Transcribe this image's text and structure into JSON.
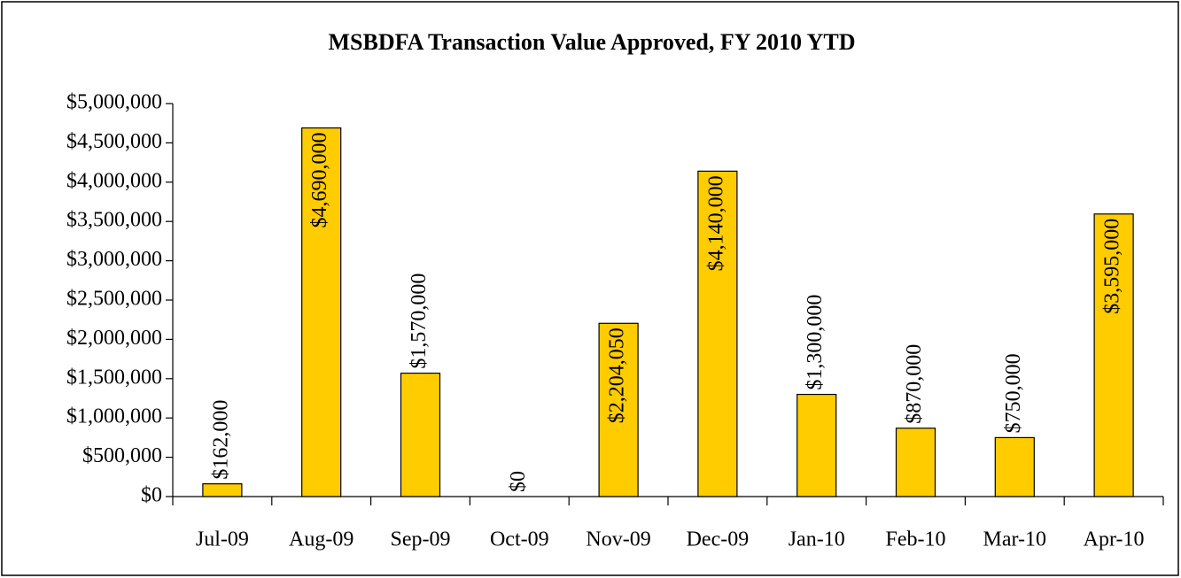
{
  "chart_data": {
    "type": "bar",
    "title": "MSBDFA Transaction Value Approved, FY 2010 YTD",
    "categories": [
      "Jul-09",
      "Aug-09",
      "Sep-09",
      "Oct-09",
      "Nov-09",
      "Dec-09",
      "Jan-10",
      "Feb-10",
      "Mar-10",
      "Apr-10"
    ],
    "values": [
      162000,
      4690000,
      1570000,
      0,
      2204050,
      4140000,
      1300000,
      870000,
      750000,
      3595000
    ],
    "value_labels": [
      "$162,000",
      "$4,690,000",
      "$1,570,000",
      "$0",
      "$2,204,050",
      "$4,140,000",
      "$1,300,000",
      "$870,000",
      "$750,000",
      "$3,595,000"
    ],
    "color": "#ffcc00",
    "ylim": [
      0,
      5000000
    ],
    "yticks": [
      {
        "value": 0,
        "label": "$0"
      },
      {
        "value": 500000,
        "label": "$500,000"
      },
      {
        "value": 1000000,
        "label": "$1,000,000"
      },
      {
        "value": 1500000,
        "label": "$1,500,000"
      },
      {
        "value": 2000000,
        "label": "$2,000,000"
      },
      {
        "value": 2500000,
        "label": "$2,500,000"
      },
      {
        "value": 3000000,
        "label": "$3,000,000"
      },
      {
        "value": 3500000,
        "label": "$3,500,000"
      },
      {
        "value": 4000000,
        "label": "$4,000,000"
      },
      {
        "value": 4500000,
        "label": "$4,500,000"
      },
      {
        "value": 5000000,
        "label": "$5,000,000"
      }
    ],
    "grid": false
  }
}
